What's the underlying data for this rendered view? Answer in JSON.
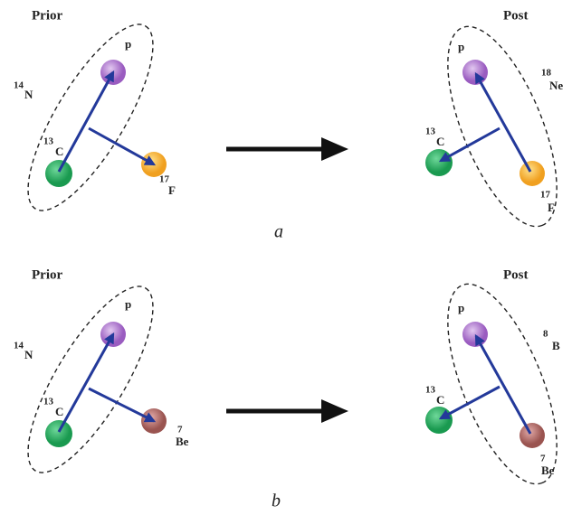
{
  "panels": [
    {
      "caption": "a",
      "prior": {
        "title": "Prior",
        "system": {
          "mass": "14",
          "symbol": "N"
        },
        "proton": "p",
        "core": {
          "mass": "13",
          "symbol": "C"
        },
        "fragment": {
          "mass": "17",
          "symbol": "F"
        }
      },
      "post": {
        "title": "Post",
        "system": {
          "mass": "18",
          "symbol": "Ne"
        },
        "proton": "p",
        "core": {
          "mass": "13",
          "symbol": "C"
        },
        "fragment": {
          "mass": "17",
          "symbol": "F"
        }
      }
    },
    {
      "caption": "b",
      "prior": {
        "title": "Prior",
        "system": {
          "mass": "14",
          "symbol": "N"
        },
        "proton": "p",
        "core": {
          "mass": "13",
          "symbol": "C"
        },
        "fragment": {
          "mass": "7",
          "symbol": "Be"
        }
      },
      "post": {
        "title": "Post",
        "system": {
          "mass": "8",
          "symbol": "B"
        },
        "proton": "p",
        "core": {
          "mass": "13",
          "symbol": "C"
        },
        "fragment": {
          "mass": "7",
          "symbol": "Be"
        }
      }
    }
  ]
}
